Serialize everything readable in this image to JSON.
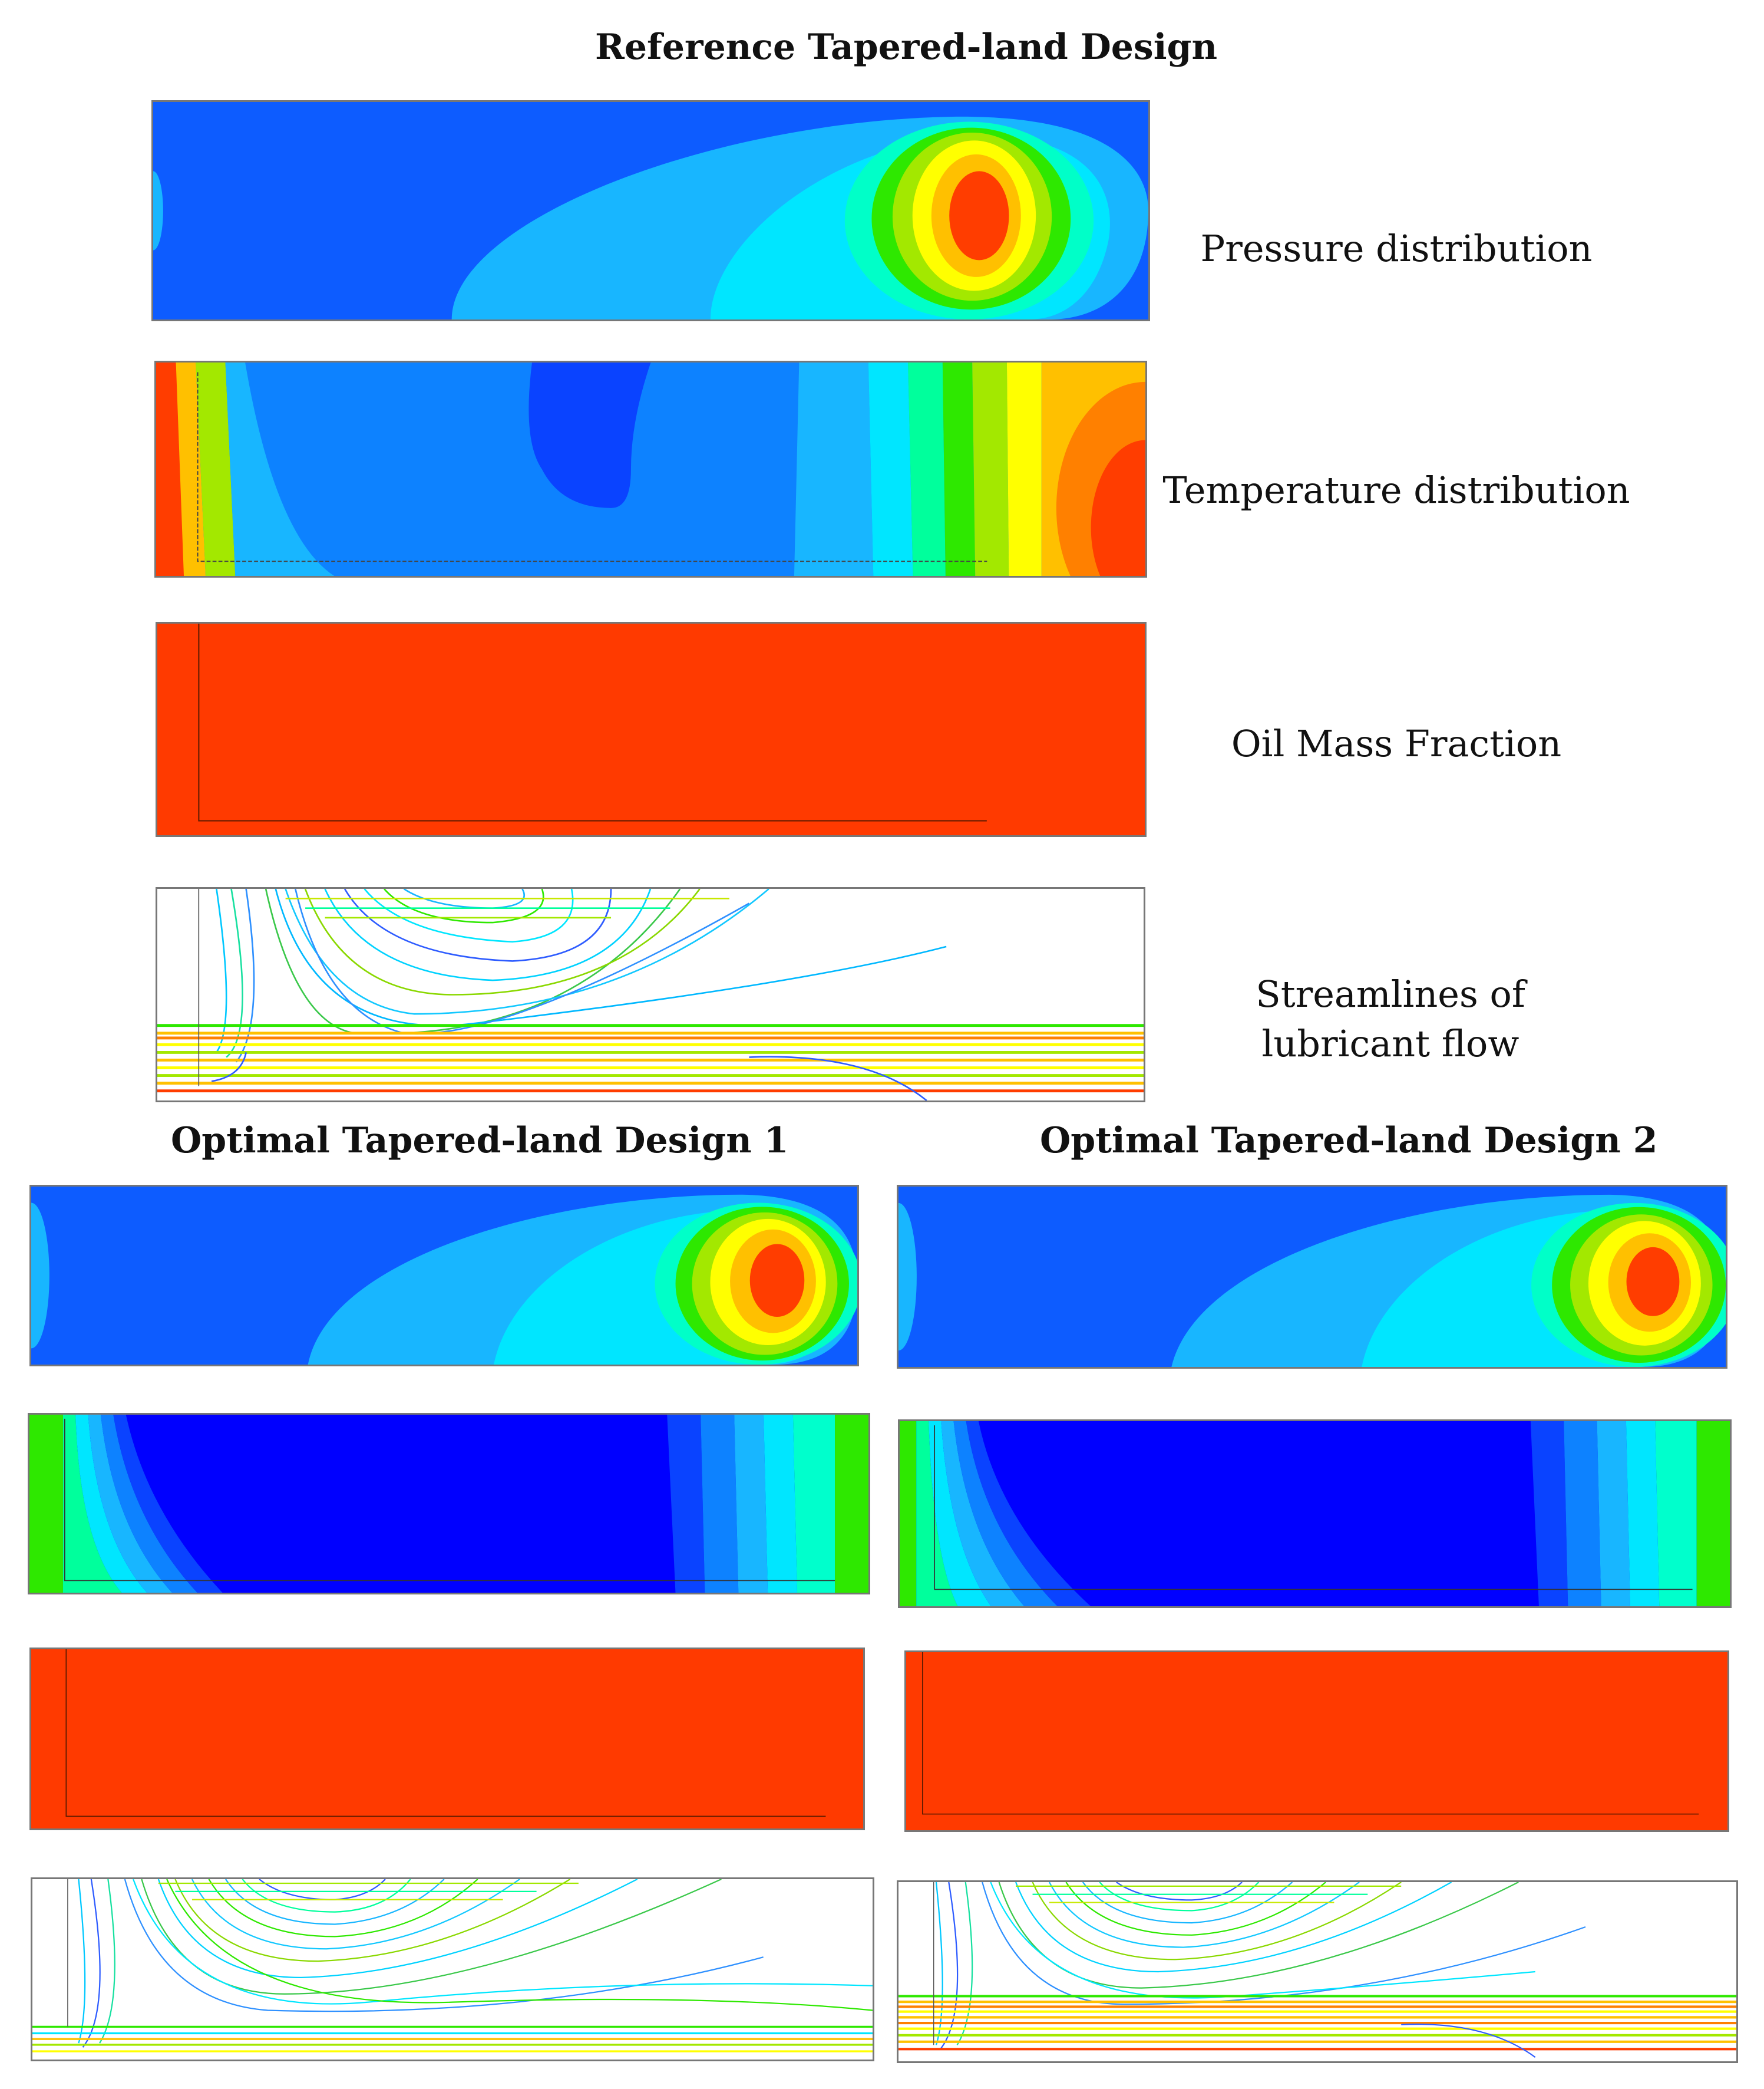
{
  "titles": {
    "reference": "Reference Tapered-land Design",
    "optimal_1": "Optimal Tapered-land Design 1",
    "optimal_2": "Optimal Tapered-land Design 2"
  },
  "row_labels": {
    "pressure": "Pressure distribution",
    "temperature": "Temperature distribution",
    "oil_mass_fraction": "Oil Mass Fraction",
    "streamlines": "Streamlines of lubricant flow"
  },
  "colors": {
    "contour_scale": [
      "#0000ff",
      "#0a43ff",
      "#0d82ff",
      "#18b6ff",
      "#00d9ff",
      "#00ffee",
      "#00ff9c",
      "#2ee800",
      "#a3e800",
      "#ffff00",
      "#ffc000",
      "#ff8000",
      "#ff3d00"
    ],
    "oil_fill": "#ff3a00",
    "panel_border": "#777777"
  }
}
